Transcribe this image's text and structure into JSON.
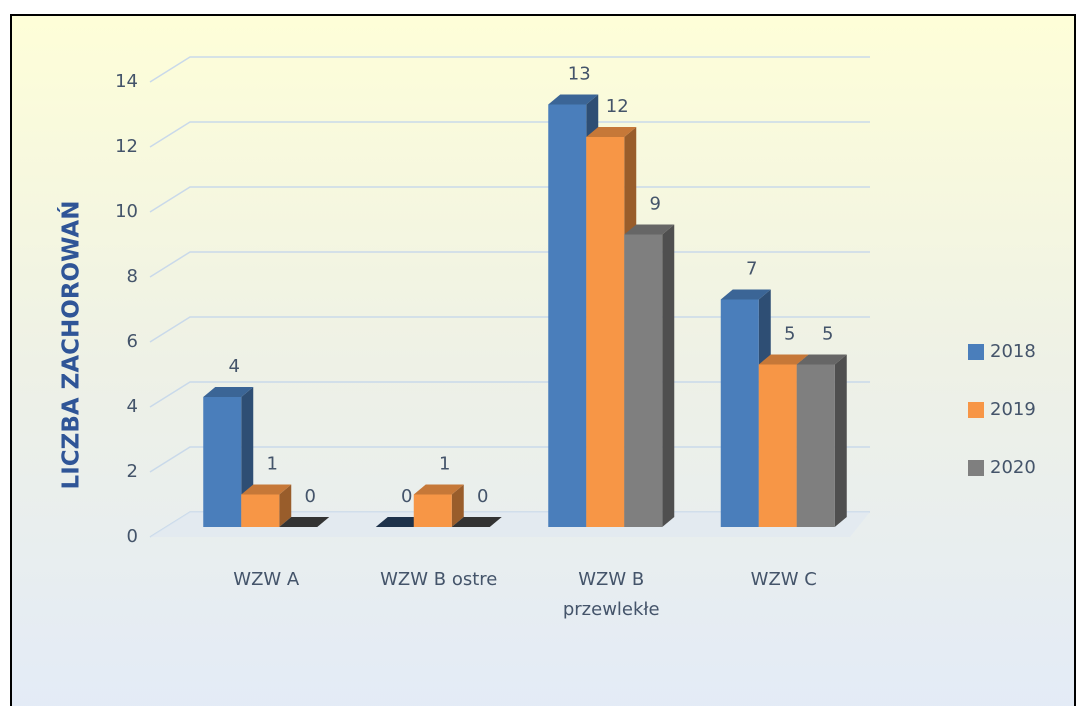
{
  "chart_data": {
    "type": "bar3d",
    "ylabel": "LICZBA ZACHOROWAŃ",
    "categories": [
      "WZW A",
      "WZW B ostre",
      "WZW B przewlekłe",
      "WZW C"
    ],
    "series": [
      {
        "name": "2018",
        "color": "#4a7ebb",
        "values": [
          4,
          0,
          13,
          7
        ]
      },
      {
        "name": "2019",
        "color": "#f79646",
        "values": [
          1,
          1,
          12,
          5
        ]
      },
      {
        "name": "2020",
        "color": "#7f7f7f",
        "values": [
          0,
          0,
          9,
          5
        ]
      }
    ],
    "ylim": [
      0,
      14
    ],
    "yticks": [
      0,
      2,
      4,
      6,
      8,
      10,
      12,
      14
    ],
    "grid": true,
    "legend": "right"
  }
}
